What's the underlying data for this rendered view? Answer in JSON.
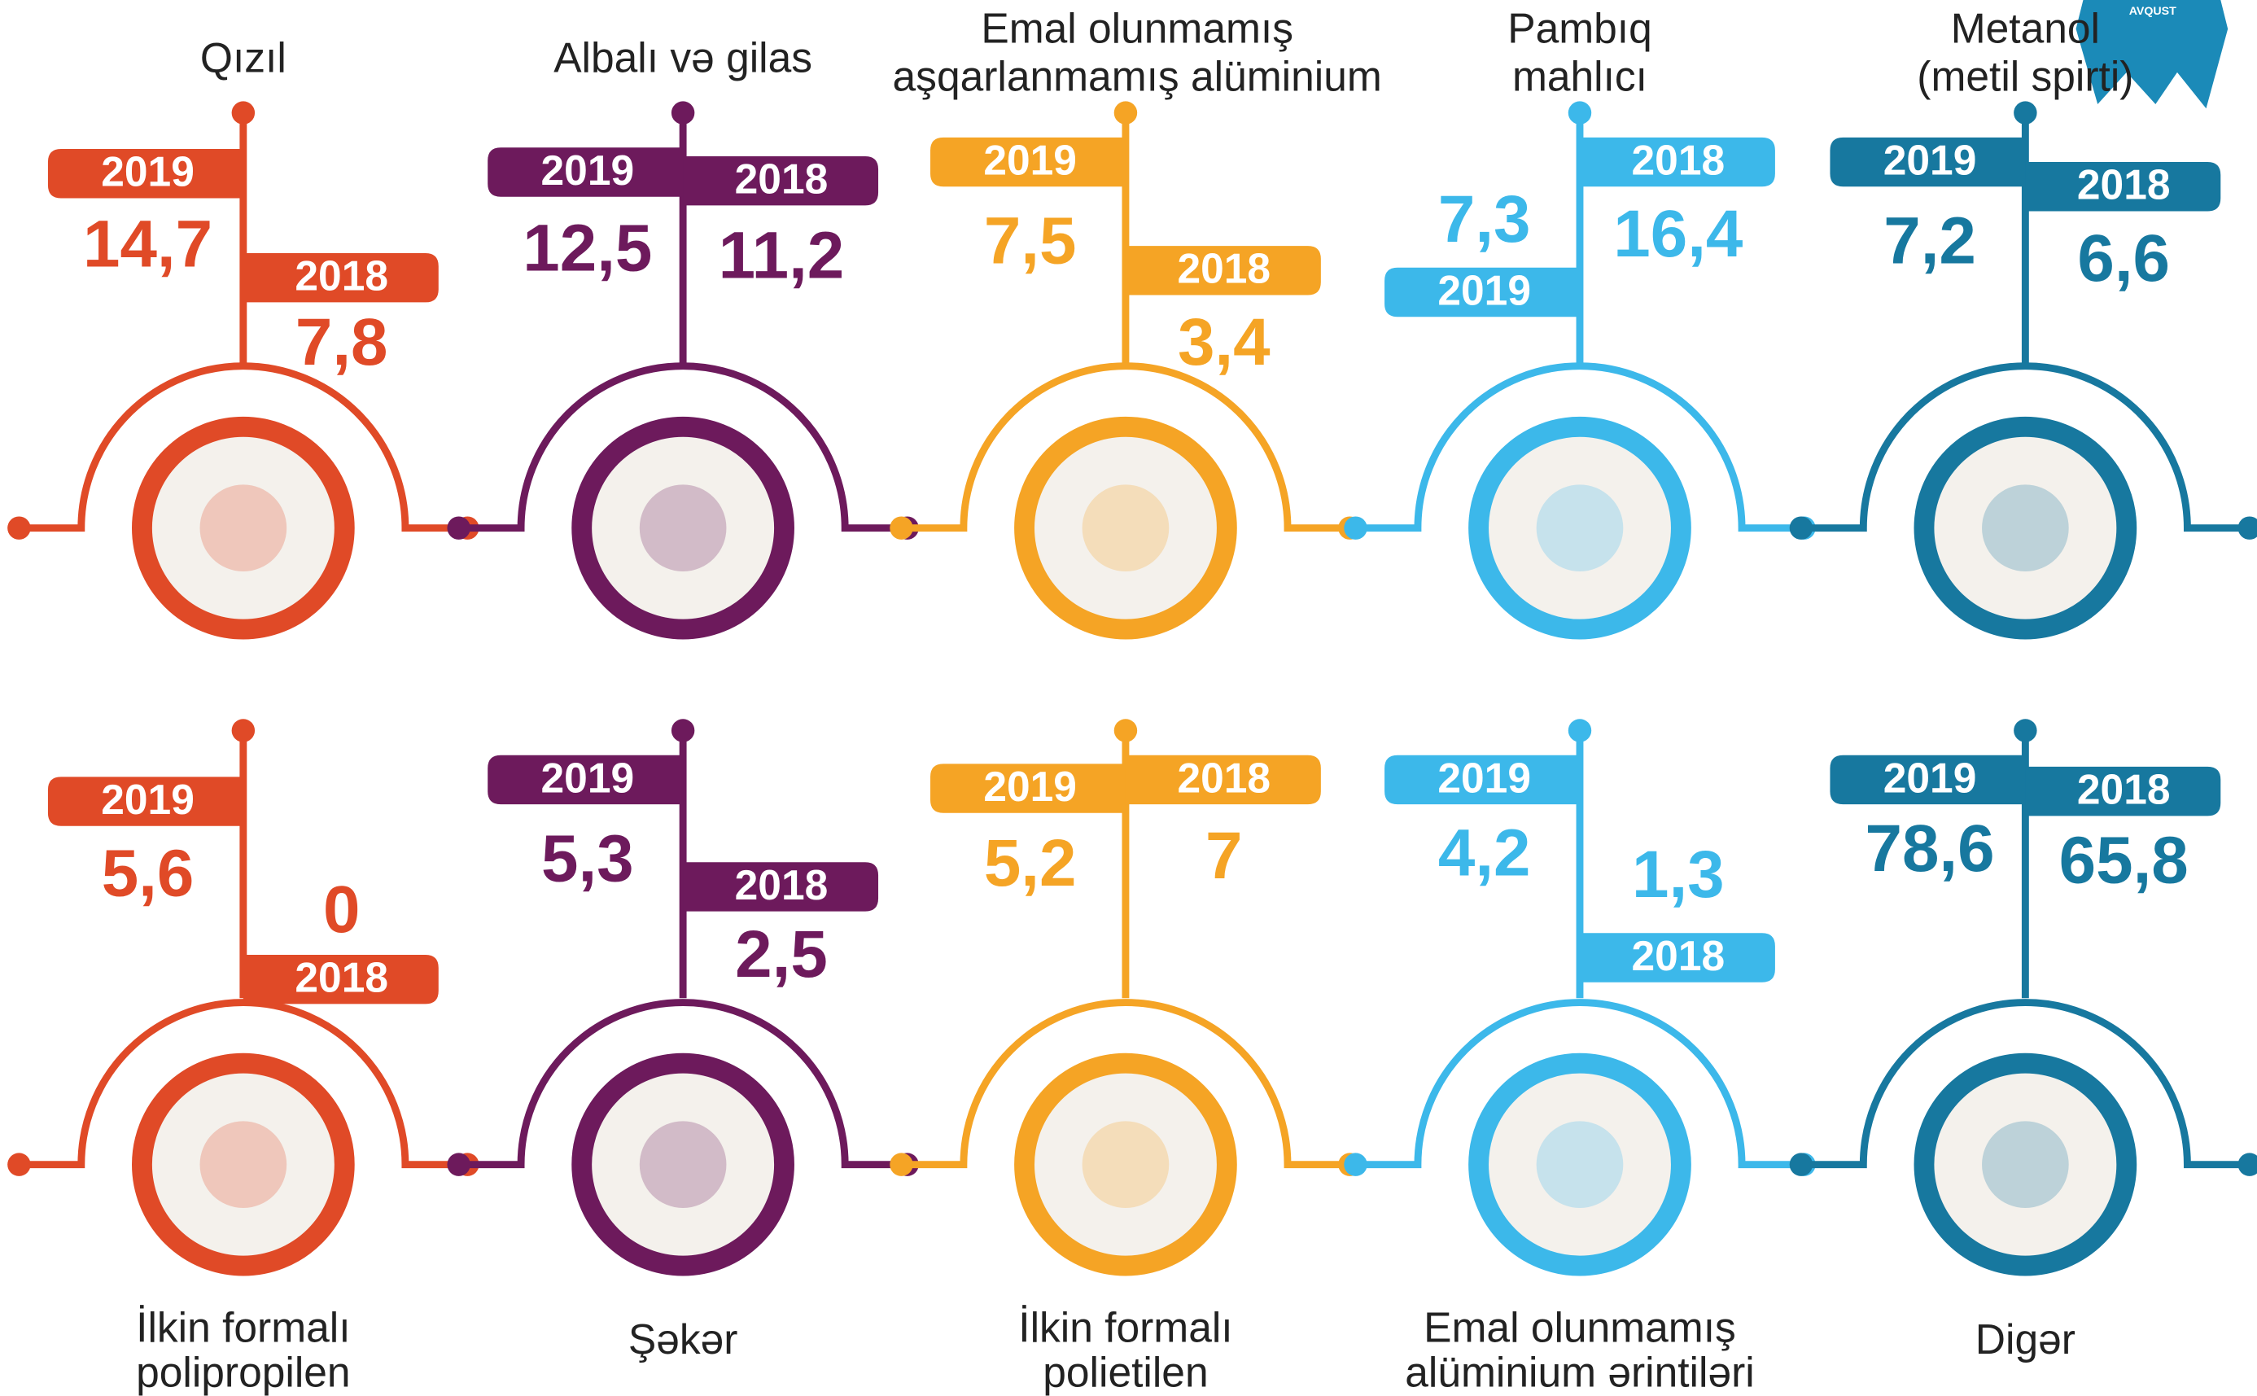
{
  "badge": "AVQUST",
  "years": [
    "2019",
    "2018"
  ],
  "items": [
    {
      "label": [
        "Qızıl"
      ],
      "value_2019": "14,7",
      "value_2018": "7,8",
      "color": "#e04a27"
    },
    {
      "label": [
        "Albalı və gilas"
      ],
      "value_2019": "12,5",
      "value_2018": "11,2",
      "color": "#6d1a5c"
    },
    {
      "label": [
        "Emal olunmamış",
        "aşqarlanmamış alüminium"
      ],
      "value_2019": "7,5",
      "value_2018": "3,4",
      "color": "#f5a425"
    },
    {
      "label": [
        "Pambıq",
        "mahlıcı"
      ],
      "value_2019": "7,3",
      "value_2018": "16,4",
      "color": "#3cb8ea"
    },
    {
      "label": [
        "Metanol",
        "(metil spirti)"
      ],
      "value_2019": "7,2",
      "value_2018": "6,6",
      "color": "#17789f"
    },
    {
      "label": [
        "İlkin formalı",
        "polipropilen"
      ],
      "value_2019": "5,6",
      "value_2018": "0",
      "color": "#e04a27"
    },
    {
      "label": [
        "Şəkər"
      ],
      "value_2019": "5,3",
      "value_2018": "2,5",
      "color": "#6d1a5c"
    },
    {
      "label": [
        "İlkin formalı",
        "polietilen"
      ],
      "value_2019": "5,2",
      "value_2018": "7",
      "color": "#f5a425"
    },
    {
      "label": [
        "Emal olunmamış",
        "alüminium ərintiləri"
      ],
      "value_2019": "4,2",
      "value_2018": "1,3",
      "color": "#3cb8ea"
    },
    {
      "label": [
        "Digər"
      ],
      "value_2019": "78,6",
      "value_2018": "65,8",
      "color": "#17789f"
    }
  ]
}
